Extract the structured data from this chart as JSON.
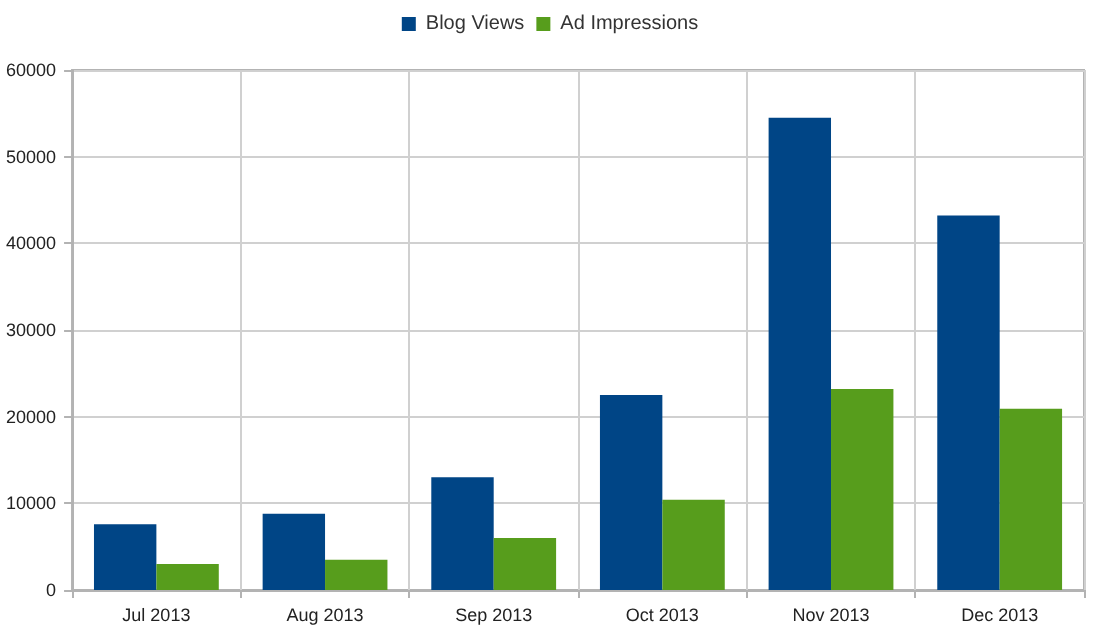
{
  "chart_data": {
    "type": "bar",
    "categories": [
      "Jul 2013",
      "Aug 2013",
      "Sep 2013",
      "Oct 2013",
      "Nov 2013",
      "Dec 2013"
    ],
    "series": [
      {
        "name": "Blog Views",
        "color": "#004586",
        "values": [
          7600,
          8800,
          13000,
          22500,
          54500,
          43200
        ]
      },
      {
        "name": "Ad Impressions",
        "color": "#579d1c",
        "values": [
          3000,
          3500,
          6000,
          10400,
          23200,
          20900
        ]
      }
    ],
    "ylim": [
      0,
      60000
    ],
    "yticks": [
      0,
      10000,
      20000,
      30000,
      40000,
      50000,
      60000
    ],
    "grid": true,
    "legend": "top"
  }
}
